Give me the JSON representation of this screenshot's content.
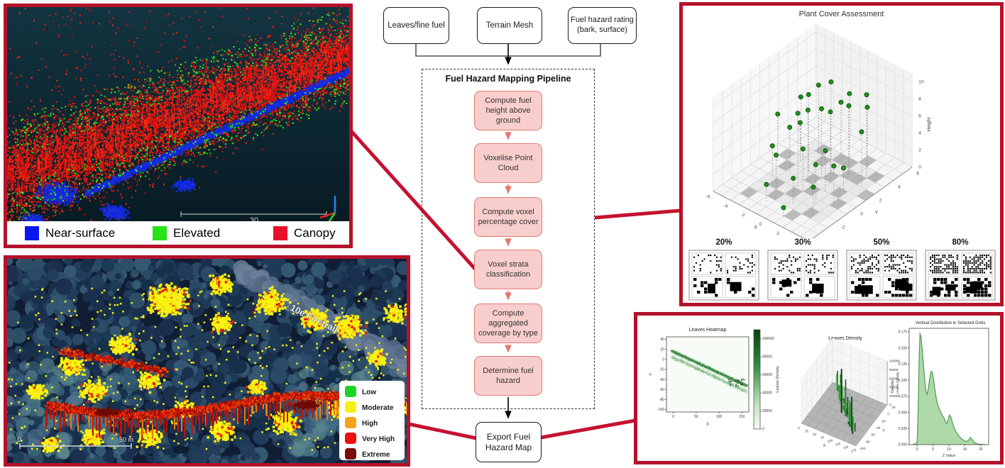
{
  "panels": {
    "pointcloud": {
      "scalebar_label": "30",
      "legend": [
        {
          "label": "Near-surface",
          "color": "#0a16f0"
        },
        {
          "label": "Elevated",
          "color": "#27e215"
        },
        {
          "label": "Canopy",
          "color": "#e8112b"
        }
      ]
    },
    "hazard_map": {
      "road_label": "10e Firetrail",
      "road_label_2": "Firetrail",
      "scalebar_left": "0",
      "scalebar_right": "50 m",
      "legend": [
        {
          "label": "Low",
          "color": "#1cd428"
        },
        {
          "label": "Moderate",
          "color": "#f6f011"
        },
        {
          "label": "High",
          "color": "#f5a31d"
        },
        {
          "label": "Very High",
          "color": "#ea1010"
        },
        {
          "label": "Extreme",
          "color": "#7a0b0b"
        }
      ]
    }
  },
  "flowchart": {
    "sources": [
      "Leaves/fine fuel",
      "Terrain Mesh",
      "Fuel hazard rating (bark, surface)"
    ],
    "pipeline_title": "Fuel Hazard Mapping Pipeline",
    "steps": [
      "Compute fuel height above ground",
      "Voxelise Point Cloud",
      "Compute voxel percentage cover",
      "Voxel strata classification",
      "Compute aggregated coverage by type",
      "Determine fuel hazard"
    ],
    "export_label": "Export Fuel Hazard Map"
  },
  "chart_data": [
    {
      "type": "scatter",
      "title": "Plant Cover Assessment",
      "xlabel": "X",
      "ylabel": "Y",
      "zlabel": "Height",
      "xticks": [
        -6,
        -4,
        -2,
        0,
        2,
        4
      ],
      "yticks": [
        6,
        4,
        2,
        0,
        -2,
        -4
      ],
      "zticks": [
        0,
        2,
        4,
        6,
        8,
        10
      ],
      "xlim": [
        -6,
        5
      ],
      "ylim": [
        -5,
        6
      ],
      "zlim": [
        0,
        11
      ],
      "point_color": "#1e8c1e",
      "points": [
        [
          -4.5,
          0.5,
          5.5
        ],
        [
          -3.5,
          -1,
          3.5
        ],
        [
          -3,
          1.5,
          4.5
        ],
        [
          -2.5,
          3,
          8
        ],
        [
          -2,
          -2,
          4
        ],
        [
          -1.5,
          1,
          9
        ],
        [
          -1.5,
          -3.5,
          2
        ],
        [
          -1,
          4,
          6
        ],
        [
          -0.5,
          0,
          8.5
        ],
        [
          0,
          2,
          10.5
        ],
        [
          0,
          -1,
          5
        ],
        [
          0.5,
          3.5,
          8.2
        ],
        [
          0.5,
          -2.5,
          3
        ],
        [
          1,
          1,
          8.3
        ],
        [
          1,
          -4,
          1
        ],
        [
          1.5,
          2.5,
          8.1
        ],
        [
          1.5,
          0,
          4.8
        ],
        [
          2,
          4,
          7
        ],
        [
          2,
          -1.5,
          4.6
        ],
        [
          2.5,
          1,
          2.5
        ],
        [
          3,
          3,
          9.8
        ],
        [
          3,
          -0.5,
          4.2
        ],
        [
          3.5,
          2,
          6.5
        ],
        [
          -4,
          2.5,
          6.2
        ],
        [
          -2.8,
          0.2,
          5.1
        ],
        [
          2.8,
          -2.5,
          3.2
        ],
        [
          0.2,
          0.8,
          8.4
        ],
        [
          -0.8,
          -0.8,
          8.6
        ]
      ],
      "floor_cells": [
        [
          -3,
          -2
        ],
        [
          -2,
          -3
        ],
        [
          -4,
          0
        ],
        [
          -1,
          0
        ],
        [
          0,
          -1
        ],
        [
          1,
          -4
        ],
        [
          2,
          -3
        ],
        [
          0,
          1
        ],
        [
          1,
          2
        ],
        [
          -2,
          2
        ],
        [
          -3,
          3
        ],
        [
          2,
          0
        ],
        [
          3,
          -1
        ],
        [
          -5,
          1
        ],
        [
          4,
          1
        ],
        [
          1,
          4
        ],
        [
          -1,
          3
        ],
        [
          3,
          3
        ],
        [
          -4,
          -4
        ],
        [
          0,
          3
        ],
        [
          -1,
          -2
        ],
        [
          2,
          2
        ]
      ]
    },
    {
      "type": "table",
      "labels": [
        "20%",
        "30%",
        "50%",
        "80%"
      ],
      "densities": [
        0.2,
        0.3,
        0.5,
        0.8
      ]
    },
    {
      "type": "heatmap",
      "title": "Leaves Heatmap",
      "xlabel": "X",
      "ylabel": "Y",
      "xticks": [
        0,
        50,
        100,
        150
      ],
      "yticks": [
        40,
        20,
        0,
        -20,
        -40,
        -60,
        -80,
        -100
      ],
      "colorbar_label": "Leaves Density",
      "colorbar_ticks": [
        "0",
        "20000",
        "40000",
        "60000",
        "80000",
        "100000"
      ]
    },
    {
      "type": "surface",
      "title": "Leaves Density",
      "xlabel": "X",
      "ylabel": "Y",
      "zlabel": "Leaves Density",
      "xticks": [
        0,
        25,
        50,
        75,
        100,
        125,
        150,
        175
      ],
      "yticks": [
        20,
        0,
        -20,
        -40,
        -60,
        -80,
        -100
      ],
      "zticks": [
        "0",
        "20000",
        "40000",
        "60000",
        "80000",
        "100000"
      ]
    },
    {
      "type": "area",
      "title": "Vertical Distribution in Selected Grids",
      "xlabel": "Z Value",
      "ylabel": "Density",
      "xticks": [
        0,
        5,
        10,
        15,
        20
      ],
      "yticks": [
        "0.000",
        "0.025",
        "0.050",
        "0.075",
        "0.100",
        "0.125",
        "0.150",
        "0.175"
      ],
      "curve": [
        [
          -1.5,
          0.0
        ],
        [
          -0.5,
          0.001
        ],
        [
          0,
          0.004
        ],
        [
          0.3,
          0.05
        ],
        [
          0.6,
          0.13
        ],
        [
          0.9,
          0.172
        ],
        [
          1.2,
          0.168
        ],
        [
          1.6,
          0.148
        ],
        [
          2.0,
          0.122
        ],
        [
          2.4,
          0.1
        ],
        [
          2.8,
          0.083
        ],
        [
          3.1,
          0.078
        ],
        [
          3.5,
          0.086
        ],
        [
          4.0,
          0.104
        ],
        [
          4.4,
          0.114
        ],
        [
          4.8,
          0.112
        ],
        [
          5.2,
          0.1
        ],
        [
          5.6,
          0.085
        ],
        [
          6.0,
          0.072
        ],
        [
          6.5,
          0.062
        ],
        [
          7.0,
          0.055
        ],
        [
          7.5,
          0.049
        ],
        [
          8.0,
          0.045
        ],
        [
          8.5,
          0.041
        ],
        [
          9.0,
          0.034
        ],
        [
          9.4,
          0.033
        ],
        [
          9.8,
          0.04
        ],
        [
          10.2,
          0.046
        ],
        [
          10.6,
          0.043
        ],
        [
          11.0,
          0.036
        ],
        [
          11.5,
          0.028
        ],
        [
          12.0,
          0.022
        ],
        [
          12.6,
          0.017
        ],
        [
          13.2,
          0.013
        ],
        [
          14.0,
          0.009
        ],
        [
          14.8,
          0.006
        ],
        [
          15.5,
          0.005
        ],
        [
          16.2,
          0.007
        ],
        [
          16.8,
          0.011
        ],
        [
          17.3,
          0.008
        ],
        [
          17.8,
          0.004
        ],
        [
          18.4,
          0.002
        ],
        [
          19.0,
          0.001
        ],
        [
          20.0,
          0.0005
        ],
        [
          21.5,
          0.0
        ]
      ]
    }
  ]
}
